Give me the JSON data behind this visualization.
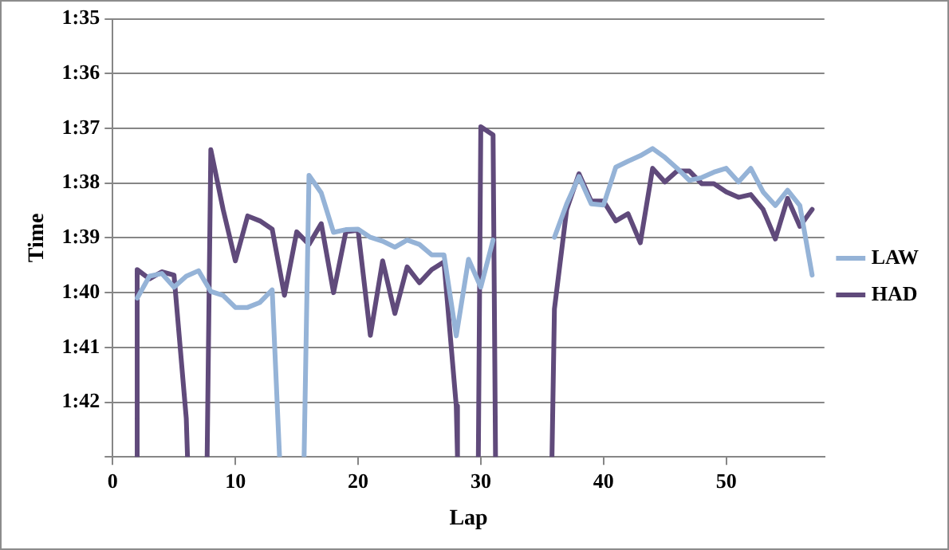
{
  "chart_data": {
    "type": "line",
    "xlabel": "Lap",
    "ylabel": "Time",
    "xlim": [
      0,
      58
    ],
    "xticks": [
      0,
      10,
      20,
      30,
      40,
      50
    ],
    "ylim": [
      103,
      95
    ],
    "yticks": [
      {
        "value": 95,
        "label": "1:35"
      },
      {
        "value": 96,
        "label": "1:36"
      },
      {
        "value": 97,
        "label": "1:37"
      },
      {
        "value": 98,
        "label": "1:38"
      },
      {
        "value": 99,
        "label": "1:39"
      },
      {
        "value": 100,
        "label": "1:40"
      },
      {
        "value": 101,
        "label": "1:41"
      },
      {
        "value": 102,
        "label": "1:42"
      },
      {
        "value": 103,
        "label": null
      }
    ],
    "grid": "y",
    "legend": "right",
    "marker": "none",
    "line_style": "solid",
    "series": [
      {
        "name": "LAW",
        "color": "#95b3d7",
        "x": [
          2,
          3,
          4,
          5,
          6,
          7,
          8,
          9,
          10,
          11,
          12,
          13,
          13.6,
          14.5,
          15.6,
          16,
          17,
          18,
          19,
          20,
          21,
          22,
          23,
          24,
          25,
          26,
          27,
          28,
          29,
          30,
          31,
          33,
          36,
          37,
          38,
          39,
          40,
          41,
          42,
          43,
          44,
          45,
          46,
          47,
          48,
          49,
          50,
          51,
          52,
          53,
          54,
          55,
          56,
          57
        ],
        "values": [
          100.1,
          99.7,
          99.65,
          99.9,
          99.7,
          99.6,
          99.98,
          100.05,
          100.27,
          100.27,
          100.18,
          99.95,
          103,
          null,
          103,
          97.86,
          98.18,
          98.9,
          98.85,
          98.84,
          98.99,
          99.06,
          99.17,
          99.04,
          99.12,
          99.31,
          99.31,
          100.79,
          99.39,
          99.9,
          99.04,
          null,
          98.99,
          98.38,
          97.88,
          98.38,
          98.4,
          97.71,
          97.6,
          97.5,
          97.37,
          97.53,
          97.73,
          97.95,
          97.9,
          97.8,
          97.73,
          97.98,
          97.73,
          98.16,
          98.41,
          98.13,
          98.41,
          99.68
        ]
      },
      {
        "name": "HAD",
        "color": "#604a7b",
        "x": [
          2,
          2,
          3,
          4,
          5,
          6,
          6.1,
          7,
          7.7,
          8,
          9,
          10,
          11,
          12,
          13,
          14,
          15,
          16,
          17,
          18,
          19,
          20,
          21,
          22,
          23,
          24,
          25,
          26,
          27,
          28,
          28.1,
          29,
          29.8,
          30,
          31,
          31.2,
          33,
          35.8,
          36,
          37,
          38,
          39,
          40,
          41,
          42,
          43,
          44,
          45,
          46,
          47,
          48,
          49,
          50,
          51,
          52,
          53,
          54,
          55,
          56,
          57
        ],
        "values": [
          103,
          99.58,
          99.75,
          99.62,
          99.68,
          102.3,
          103,
          null,
          103,
          97.39,
          98.48,
          99.42,
          98.6,
          98.69,
          98.84,
          100.05,
          98.89,
          99.12,
          98.74,
          100.0,
          98.89,
          98.86,
          100.78,
          99.42,
          100.38,
          99.53,
          99.82,
          99.58,
          99.44,
          102.07,
          103,
          null,
          103,
          96.97,
          97.12,
          103,
          null,
          103,
          100.3,
          98.48,
          97.83,
          98.33,
          98.33,
          98.69,
          98.56,
          99.09,
          97.73,
          97.98,
          97.78,
          97.78,
          98.01,
          98.01,
          98.16,
          98.26,
          98.21,
          98.48,
          99.02,
          98.28,
          98.79,
          98.48
        ]
      }
    ]
  }
}
